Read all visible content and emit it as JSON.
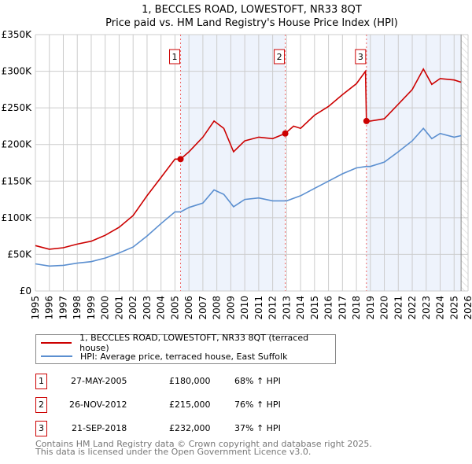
{
  "chart_data": {
    "type": "line",
    "title": "1, BECCLES ROAD, LOWESTOFT, NR33 8QT",
    "subtitle": "Price paid vs. HM Land Registry's House Price Index (HPI)",
    "xlim": [
      1995,
      2026
    ],
    "ylim": [
      0,
      350000
    ],
    "x_ticks": [
      "1995",
      "1996",
      "1997",
      "1998",
      "1999",
      "2000",
      "2001",
      "2002",
      "2003",
      "2004",
      "2005",
      "2006",
      "2007",
      "2008",
      "2009",
      "2010",
      "2011",
      "2012",
      "2013",
      "2014",
      "2015",
      "2016",
      "2017",
      "2018",
      "2019",
      "2020",
      "2021",
      "2022",
      "2023",
      "2024",
      "2025",
      "2026"
    ],
    "y_ticks": [
      {
        "v": 0,
        "label": "£0"
      },
      {
        "v": 50000,
        "label": "£50K"
      },
      {
        "v": 100000,
        "label": "£100K"
      },
      {
        "v": 150000,
        "label": "£150K"
      },
      {
        "v": 200000,
        "label": "£200K"
      },
      {
        "v": 250000,
        "label": "£250K"
      },
      {
        "v": 300000,
        "label": "£300K"
      },
      {
        "v": 350000,
        "label": "£350K"
      }
    ],
    "grid": true,
    "series": [
      {
        "name": "1, BECCLES ROAD, LOWESTOFT, NR33 8QT (terraced house)",
        "color": "#cc0000",
        "x": [
          1995,
          1996,
          1997,
          1998,
          1999,
          2000,
          2001,
          2002,
          2003,
          2004,
          2005,
          2005.4,
          2006,
          2007,
          2007.8,
          2008.5,
          2009.2,
          2010,
          2011,
          2012,
          2012.9,
          2013.5,
          2014,
          2015,
          2016,
          2017,
          2018,
          2018.65,
          2018.72,
          2019,
          2020,
          2021,
          2022,
          2022.8,
          2023.4,
          2024,
          2025,
          2025.5
        ],
        "y": [
          62000,
          57000,
          59000,
          64000,
          68000,
          76000,
          87000,
          103000,
          130000,
          155000,
          180000,
          180000,
          190000,
          210000,
          232000,
          222000,
          190000,
          205000,
          210000,
          208000,
          215000,
          225000,
          222000,
          240000,
          252000,
          268000,
          283000,
          300000,
          232000,
          232000,
          235000,
          255000,
          275000,
          303000,
          282000,
          290000,
          288000,
          285000
        ]
      },
      {
        "name": "HPI: Average price, terraced house, East Suffolk",
        "color": "#5b8fd0",
        "x": [
          1995,
          1996,
          1997,
          1998,
          1999,
          2000,
          2001,
          2002,
          2003,
          2004,
          2005,
          2005.4,
          2006,
          2007,
          2007.8,
          2008.5,
          2009.2,
          2010,
          2011,
          2012,
          2013,
          2014,
          2015,
          2016,
          2017,
          2018,
          2018.7,
          2019,
          2020,
          2021,
          2022,
          2022.8,
          2023.4,
          2024,
          2025,
          2025.5
        ],
        "y": [
          37000,
          34000,
          35000,
          38000,
          40000,
          45000,
          52000,
          60000,
          75000,
          92000,
          108000,
          108000,
          114000,
          120000,
          138000,
          132000,
          115000,
          125000,
          127000,
          123000,
          123000,
          130000,
          140000,
          150000,
          160000,
          168000,
          170000,
          170000,
          176000,
          190000,
          205000,
          222000,
          208000,
          215000,
          210000,
          212000
        ]
      }
    ],
    "sales": [
      {
        "label": "1",
        "x": 2005.4,
        "price": 180000
      },
      {
        "label": "2",
        "x": 2012.9,
        "price": 215000
      },
      {
        "label": "3",
        "x": 2018.72,
        "price": 232000
      }
    ],
    "data_end": 2025.5,
    "legend_position": "bottom"
  },
  "colors": {
    "property": "#cc0000",
    "hpi": "#5b8fd0",
    "shade": "#eef3fc"
  },
  "legend": {
    "property": "1, BECCLES ROAD, LOWESTOFT, NR33 8QT (terraced house)",
    "hpi": "HPI: Average price, terraced house, East Suffolk"
  },
  "table": [
    {
      "num": "1",
      "date": "27-MAY-2005",
      "price": "£180,000",
      "hpi": "68% ↑ HPI"
    },
    {
      "num": "2",
      "date": "26-NOV-2012",
      "price": "£215,000",
      "hpi": "76% ↑ HPI"
    },
    {
      "num": "3",
      "date": "21-SEP-2018",
      "price": "£232,000",
      "hpi": "37% ↑ HPI"
    }
  ],
  "footer": {
    "line1": "Contains HM Land Registry data © Crown copyright and database right 2025.",
    "line2": "This data is licensed under the Open Government Licence v3.0."
  }
}
